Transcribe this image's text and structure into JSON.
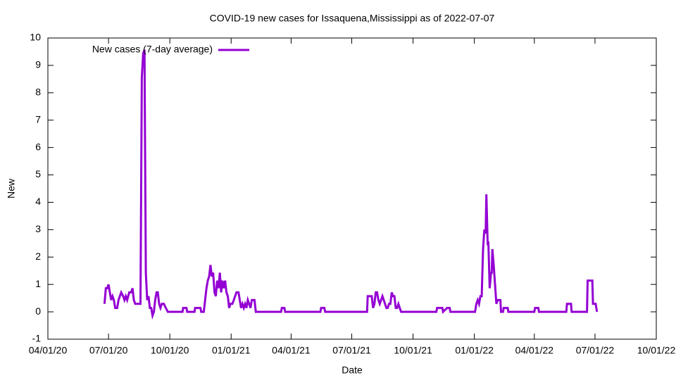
{
  "chart_data": {
    "type": "line",
    "title": "COVID-19 new cases for Issaquena,Mississippi as of 2022-07-07",
    "x_label": "Date",
    "y_label": "New",
    "legend_position": "top-left",
    "series": [
      {
        "name": "New cases (7-day average)",
        "color": "#9400d3",
        "x": [
          "2020-06-25",
          "2020-06-27",
          "2020-06-29",
          "2020-07-01",
          "2020-07-03",
          "2020-07-05",
          "2020-07-07",
          "2020-07-09",
          "2020-07-11",
          "2020-07-14",
          "2020-07-16",
          "2020-07-18",
          "2020-07-20",
          "2020-07-23",
          "2020-07-25",
          "2020-07-27",
          "2020-07-29",
          "2020-08-01",
          "2020-08-04",
          "2020-08-06",
          "2020-08-08",
          "2020-08-10",
          "2020-08-12",
          "2020-08-18",
          "2020-08-20",
          "2020-08-22",
          "2020-08-24",
          "2020-08-26",
          "2020-08-28",
          "2020-08-30",
          "2020-09-01",
          "2020-09-03",
          "2020-09-05",
          "2020-09-07",
          "2020-09-09",
          "2020-09-11",
          "2020-09-13",
          "2020-09-15",
          "2020-09-17",
          "2020-09-19",
          "2020-09-22",
          "2020-09-25",
          "2020-09-28",
          "2020-10-20",
          "2020-10-21",
          "2020-10-26",
          "2020-10-27",
          "2020-11-07",
          "2020-11-08",
          "2020-11-16",
          "2020-11-17",
          "2020-11-21",
          "2020-11-23",
          "2020-11-25",
          "2020-11-27",
          "2020-11-29",
          "2020-12-01",
          "2020-12-03",
          "2020-12-05",
          "2020-12-07",
          "2020-12-09",
          "2020-12-11",
          "2020-12-13",
          "2020-12-15",
          "2020-12-17",
          "2020-12-19",
          "2020-12-21",
          "2020-12-23",
          "2020-12-25",
          "2020-12-27",
          "2020-12-29",
          "2020-12-31",
          "2021-01-03",
          "2021-01-05",
          "2021-01-07",
          "2021-01-09",
          "2021-01-12",
          "2021-01-14",
          "2021-01-16",
          "2021-01-18",
          "2021-01-20",
          "2021-01-22",
          "2021-01-24",
          "2021-01-26",
          "2021-01-28",
          "2021-01-30",
          "2021-02-01",
          "2021-02-05",
          "2021-02-07",
          "2021-03-17",
          "2021-03-18",
          "2021-03-22",
          "2021-03-23",
          "2021-05-15",
          "2021-05-16",
          "2021-05-21",
          "2021-05-22",
          "2021-07-24",
          "2021-07-25",
          "2021-07-31",
          "2021-08-02",
          "2021-08-04",
          "2021-08-06",
          "2021-08-08",
          "2021-08-10",
          "2021-08-12",
          "2021-08-14",
          "2021-08-16",
          "2021-08-18",
          "2021-08-20",
          "2021-08-22",
          "2021-08-24",
          "2021-08-26",
          "2021-08-28",
          "2021-08-30",
          "2021-09-01",
          "2021-09-03",
          "2021-09-05",
          "2021-09-07",
          "2021-09-09",
          "2021-09-11",
          "2021-09-13",
          "2021-11-05",
          "2021-11-06",
          "2021-11-14",
          "2021-11-15",
          "2021-11-21",
          "2021-11-25",
          "2021-11-26",
          "2022-01-02",
          "2022-01-04",
          "2022-01-06",
          "2022-01-08",
          "2022-01-10",
          "2022-01-12",
          "2022-01-14",
          "2022-01-16",
          "2022-01-18",
          "2022-01-19",
          "2022-01-21",
          "2022-01-22",
          "2022-01-24",
          "2022-01-26",
          "2022-01-27",
          "2022-01-28",
          "2022-01-30",
          "2022-02-01",
          "2022-02-03",
          "2022-02-05",
          "2022-02-09",
          "2022-02-10",
          "2022-02-13",
          "2022-02-14",
          "2022-02-20",
          "2022-02-21",
          "2022-04-01",
          "2022-04-02",
          "2022-04-07",
          "2022-04-08",
          "2022-05-19",
          "2022-05-20",
          "2022-05-26",
          "2022-05-27",
          "2022-06-19",
          "2022-06-20",
          "2022-06-27",
          "2022-06-28",
          "2022-07-02",
          "2022-07-04"
        ],
        "values": [
          0.29,
          0.86,
          0.86,
          1.0,
          0.71,
          0.43,
          0.57,
          0.43,
          0.14,
          0.14,
          0.43,
          0.57,
          0.71,
          0.57,
          0.43,
          0.57,
          0.43,
          0.71,
          0.71,
          0.86,
          0.43,
          0.29,
          0.29,
          0.29,
          8.57,
          9.43,
          9.57,
          1.43,
          0.43,
          0.57,
          0.14,
          0.14,
          -0.14,
          0,
          0.43,
          0.71,
          0.71,
          0.29,
          0.14,
          0.29,
          0.29,
          0.14,
          0,
          0,
          0.14,
          0.14,
          0,
          0,
          0.14,
          0.14,
          0,
          0,
          0.43,
          0.86,
          1.14,
          1.29,
          1.71,
          1.29,
          1.43,
          0.71,
          0.57,
          1.14,
          0.86,
          1.43,
          0.71,
          1.14,
          0.86,
          1.14,
          0.71,
          0.57,
          0.14,
          0.29,
          0.29,
          0.43,
          0.57,
          0.71,
          0.71,
          0.43,
          0.14,
          0.29,
          0.14,
          0.29,
          0.14,
          0.43,
          0.29,
          0.14,
          0.43,
          0.43,
          0,
          0,
          0.14,
          0.14,
          0,
          0,
          0.14,
          0.14,
          0,
          0,
          0.57,
          0.57,
          0.14,
          0.29,
          0.71,
          0.71,
          0.43,
          0.29,
          0.43,
          0.57,
          0.43,
          0.29,
          0.14,
          0.14,
          0.29,
          0.29,
          0.71,
          0.57,
          0.57,
          0.14,
          0.14,
          0.29,
          0.14,
          0,
          0,
          0.14,
          0.14,
          0,
          0.14,
          0.14,
          0,
          0,
          0.29,
          0.43,
          0.29,
          0.57,
          0.57,
          2.29,
          3.0,
          2.86,
          4.29,
          2.43,
          2.57,
          0.86,
          1.43,
          1.43,
          2.29,
          1.71,
          1.0,
          0.29,
          0.43,
          0.43,
          0,
          0,
          0.14,
          0.14,
          0,
          0,
          0.14,
          0.14,
          0,
          0,
          0.29,
          0.29,
          0,
          0,
          1.14,
          1.14,
          0.29,
          0.29,
          0
        ]
      }
    ],
    "xlim": [
      "2020-04-01",
      "2022-10-01"
    ],
    "xticks": [
      {
        "value": "2020-04-01",
        "label": "04/01/20"
      },
      {
        "value": "2020-07-01",
        "label": "07/01/20"
      },
      {
        "value": "2020-10-01",
        "label": "10/01/20"
      },
      {
        "value": "2021-01-01",
        "label": "01/01/21"
      },
      {
        "value": "2021-04-01",
        "label": "04/01/21"
      },
      {
        "value": "2021-07-01",
        "label": "07/01/21"
      },
      {
        "value": "2021-10-01",
        "label": "10/01/21"
      },
      {
        "value": "2022-01-01",
        "label": "01/01/22"
      },
      {
        "value": "2022-04-01",
        "label": "04/01/22"
      },
      {
        "value": "2022-07-01",
        "label": "07/01/22"
      },
      {
        "value": "2022-10-01",
        "label": "10/01/22"
      }
    ],
    "ylim": [
      -1,
      10
    ],
    "yticks": [
      -1,
      0,
      1,
      2,
      3,
      4,
      5,
      6,
      7,
      8,
      9,
      10
    ],
    "grid": false
  }
}
